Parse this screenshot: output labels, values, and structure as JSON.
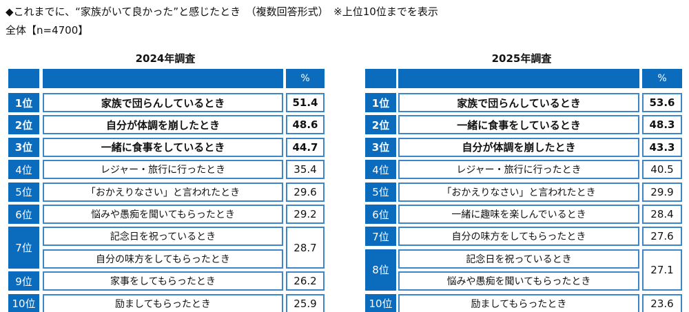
{
  "header": {
    "title": "◆これまでに、“家族がいて良かった”と感じたとき　（複数回答形式）　※上位10位までを表示",
    "sample": "全体【n=4700】"
  },
  "tables": [
    {
      "title": "2024年調査",
      "percent_header": "%",
      "rows": [
        {
          "rank": "1位",
          "items": [
            "家族で団らんしているとき"
          ],
          "value": "51.4",
          "bold": true
        },
        {
          "rank": "2位",
          "items": [
            "自分が体調を崩したとき"
          ],
          "value": "48.6",
          "bold": true
        },
        {
          "rank": "3位",
          "items": [
            "一緒に食事をしているとき"
          ],
          "value": "44.7",
          "bold": true
        },
        {
          "rank": "4位",
          "items": [
            "レジャー・旅行に行ったとき"
          ],
          "value": "35.4",
          "bold": false
        },
        {
          "rank": "5位",
          "items": [
            "「おかえりなさい」と言われたとき"
          ],
          "value": "29.6",
          "bold": false
        },
        {
          "rank": "6位",
          "items": [
            "悩みや愚痴を聞いてもらったとき"
          ],
          "value": "29.2",
          "bold": false
        },
        {
          "rank": "7位",
          "items": [
            "記念日を祝っているとき",
            "自分の味方をしてもらったとき"
          ],
          "value": "28.7",
          "bold": false
        },
        {
          "rank": "9位",
          "items": [
            "家事をしてもらったとき"
          ],
          "value": "26.2",
          "bold": false
        },
        {
          "rank": "10位",
          "items": [
            "励ましてもらったとき"
          ],
          "value": "25.9",
          "bold": false
        }
      ]
    },
    {
      "title": "2025年調査",
      "percent_header": "%",
      "rows": [
        {
          "rank": "1位",
          "items": [
            "家族で団らんしているとき"
          ],
          "value": "53.6",
          "bold": true
        },
        {
          "rank": "2位",
          "items": [
            "一緒に食事をしているとき"
          ],
          "value": "48.3",
          "bold": true
        },
        {
          "rank": "3位",
          "items": [
            "自分が体調を崩したとき"
          ],
          "value": "43.3",
          "bold": true
        },
        {
          "rank": "4位",
          "items": [
            "レジャー・旅行に行ったとき"
          ],
          "value": "40.5",
          "bold": false
        },
        {
          "rank": "5位",
          "items": [
            "「おかえりなさい」と言われたとき"
          ],
          "value": "29.9",
          "bold": false
        },
        {
          "rank": "6位",
          "items": [
            "一緒に趣味を楽しんでいるとき"
          ],
          "value": "28.4",
          "bold": false
        },
        {
          "rank": "7位",
          "items": [
            "自分の味方をしてもらったとき"
          ],
          "value": "27.6",
          "bold": false
        },
        {
          "rank": "8位",
          "items": [
            "記念日を祝っているとき",
            "悩みや愚痴を聞いてもらったとき"
          ],
          "value": "27.1",
          "bold": false
        },
        {
          "rank": "10位",
          "items": [
            "励ましてもらったとき"
          ],
          "value": "23.6",
          "bold": false
        }
      ]
    }
  ],
  "colors": {
    "header_blue": "#0b6cbd",
    "border_blue": "#3a86c8"
  }
}
